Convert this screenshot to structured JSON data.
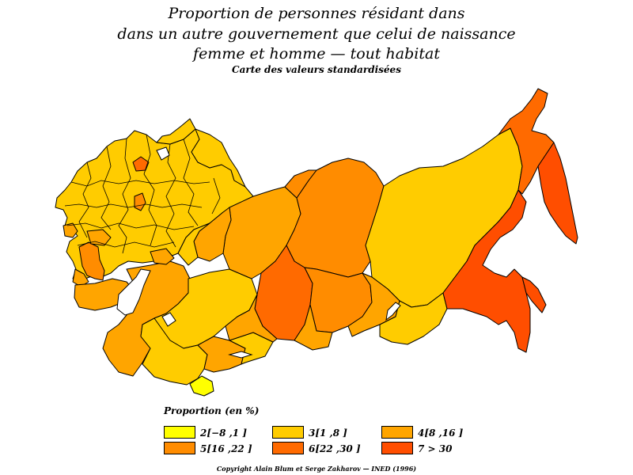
{
  "title": {
    "line1": "Proportion de personnes résidant dans",
    "line2": "dans un autre gouvernement que celui de naissance",
    "line3": "femme et homme  —  tout habitat",
    "subtitle": "Carte des valeurs standardisées"
  },
  "legend": {
    "title": "Proportion  (en %)",
    "items": [
      {
        "label": "2[−8 ,1 ]",
        "color": "#ffff00"
      },
      {
        "label": "3[1 ,8 ]",
        "color": "#ffcc00"
      },
      {
        "label": "4[8 ,16 ]",
        "color": "#ffa500"
      },
      {
        "label": "5[16 ,22 ]",
        "color": "#ff8c00"
      },
      {
        "label": "6[22 ,30 ]",
        "color": "#ff6a00"
      },
      {
        "label": "7  >  30",
        "color": "#ff4e00"
      }
    ]
  },
  "copyright": "Copyright Alain Blum et Serge Zakharov  —  INED (1996)",
  "colors": {
    "class2": "#ffff00",
    "class3": "#ffcc00",
    "class4": "#ffa500",
    "class5": "#ff8c00",
    "class6": "#ff6a00",
    "class7": "#ff4e00",
    "border": "#000000"
  }
}
